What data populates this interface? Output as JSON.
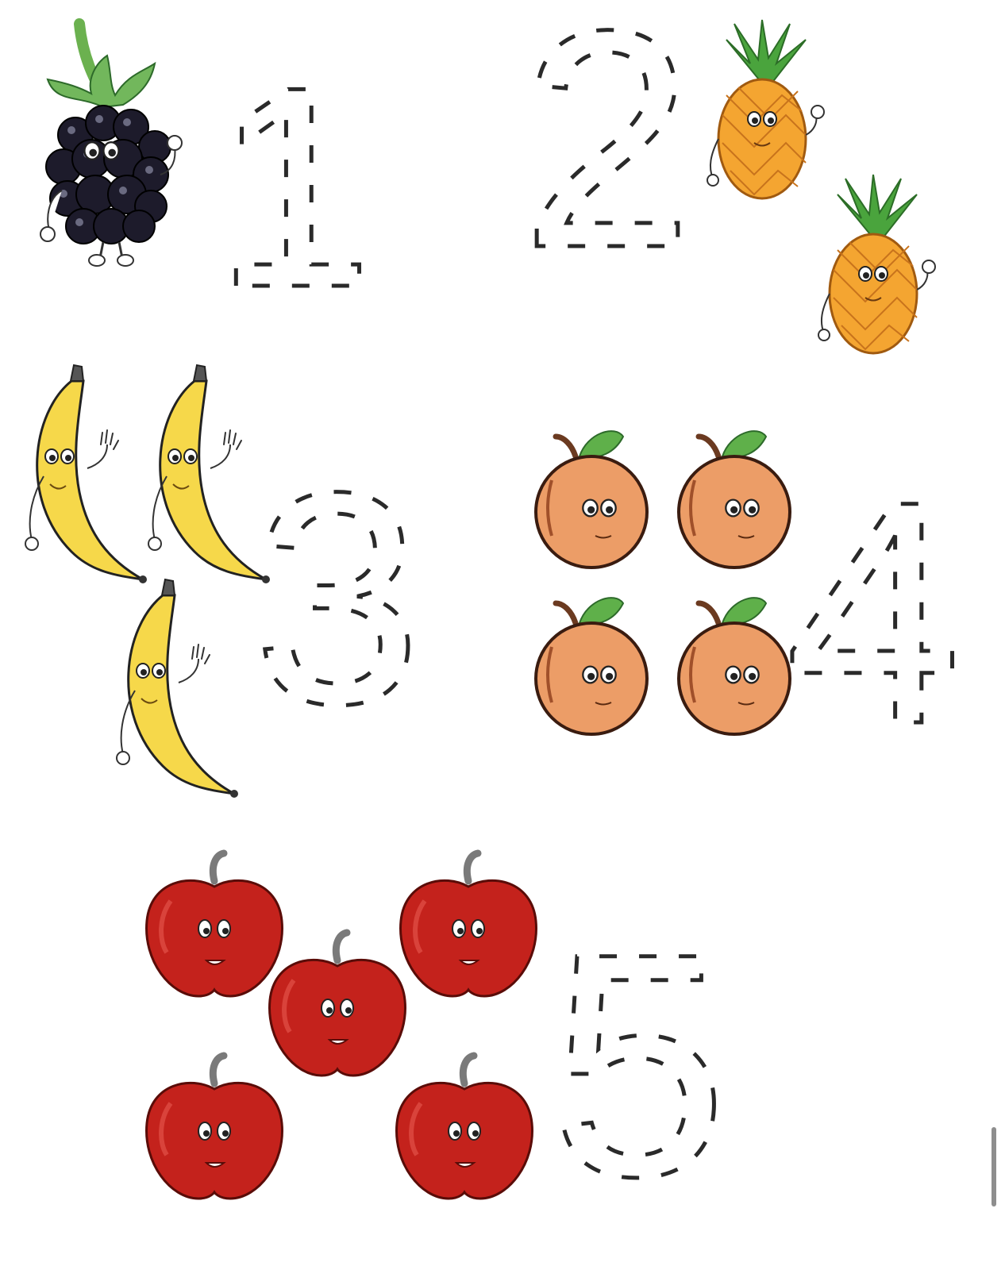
{
  "worksheet": {
    "groups": [
      {
        "number": "1",
        "fruit": "blackberry",
        "count": 1
      },
      {
        "number": "2",
        "fruit": "pineapple",
        "count": 2
      },
      {
        "number": "3",
        "fruit": "banana",
        "count": 3
      },
      {
        "number": "4",
        "fruit": "peach",
        "count": 4
      },
      {
        "number": "5",
        "fruit": "apple",
        "count": 5
      }
    ]
  },
  "colors": {
    "background": "#ffffff",
    "dashed_digit": "#2a2a2a",
    "blackberry": "#1d1b2b",
    "pineapple": "#f4a531",
    "pineapple_leaves": "#3f9b3a",
    "banana": "#f6d84a",
    "peach": "#ec9d67",
    "peach_leaf": "#5fb04a",
    "apple": "#c4221c",
    "outline": "#3a1c10"
  },
  "scrollbar": {
    "icon": "scrollbar-thumb"
  }
}
